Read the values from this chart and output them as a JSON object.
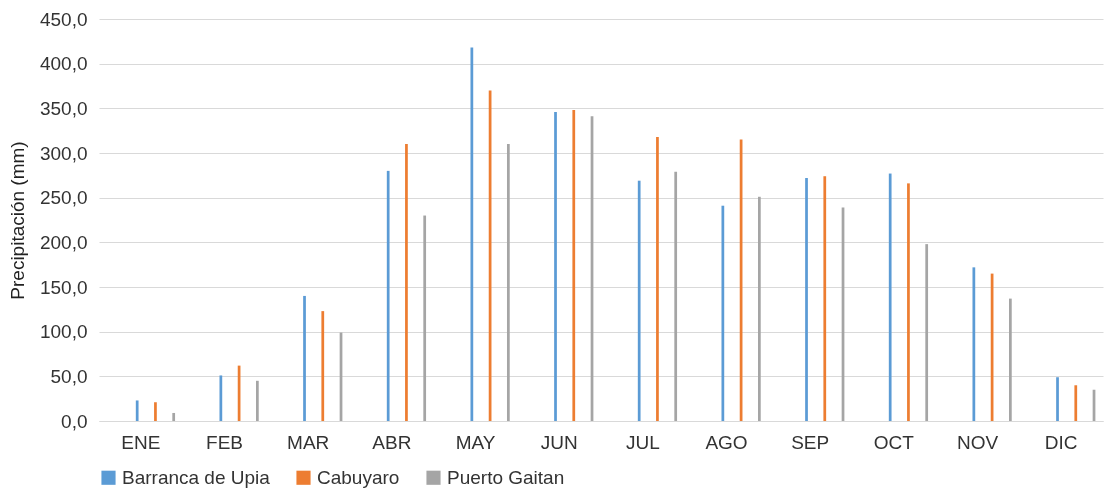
{
  "chart_data": {
    "type": "bar",
    "ylabel": "Precipitación (mm)",
    "categories": [
      "ENE",
      "FEB",
      "MAR",
      "ABR",
      "MAY",
      "JUN",
      "JUL",
      "AGO",
      "SEP",
      "OCT",
      "NOV",
      "DIC"
    ],
    "series": [
      {
        "name": "Barranca de Upia",
        "color": "#5b9bd5",
        "values": [
          23,
          51,
          140,
          280,
          418,
          346,
          269,
          241,
          272,
          277,
          172,
          49
        ]
      },
      {
        "name": "Cabuyaro",
        "color": "#ed7d31",
        "values": [
          21,
          62,
          123,
          310,
          370,
          348,
          318,
          315,
          274,
          266,
          165,
          40
        ]
      },
      {
        "name": "Puerto Gaitan",
        "color": "#a5a5a5",
        "values": [
          9,
          45,
          99,
          230,
          310,
          341,
          279,
          251,
          239,
          198,
          137,
          35
        ]
      }
    ],
    "ylim": [
      0,
      450
    ],
    "yticks": [
      {
        "value": 0,
        "label": "0,0"
      },
      {
        "value": 50,
        "label": "50,0"
      },
      {
        "value": 100,
        "label": "100,0"
      },
      {
        "value": 150,
        "label": "150,0"
      },
      {
        "value": 200,
        "label": "200,0"
      },
      {
        "value": 250,
        "label": "250,0"
      },
      {
        "value": 300,
        "label": "300,0"
      },
      {
        "value": 350,
        "label": "350,0"
      },
      {
        "value": 400,
        "label": "400,0"
      },
      {
        "value": 450,
        "label": "450,0"
      }
    ],
    "grid": "y",
    "legend": "bottom"
  }
}
